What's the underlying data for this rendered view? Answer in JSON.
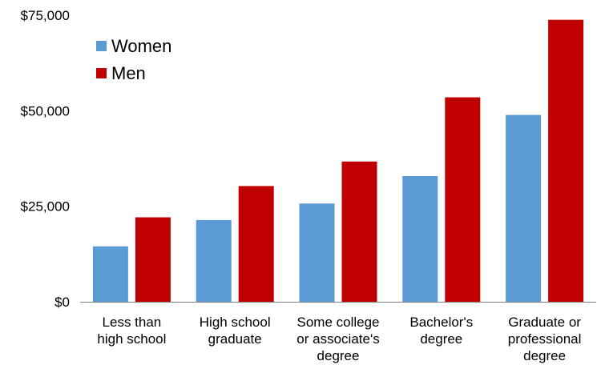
{
  "chart_data": {
    "type": "bar",
    "title": "",
    "xlabel": "",
    "ylabel": "",
    "categories": [
      [
        "Less than",
        "high school"
      ],
      [
        "High school",
        "graduate"
      ],
      [
        "Some college",
        "or associate's",
        "degree"
      ],
      [
        "Bachelor's",
        "degree"
      ],
      [
        "Graduate or",
        "professional",
        "degree"
      ]
    ],
    "series": [
      {
        "name": "Women",
        "color": "#5b9bd5",
        "values": [
          14500,
          21400,
          25700,
          32900,
          48900
        ]
      },
      {
        "name": "Men",
        "color": "#c00000",
        "values": [
          22100,
          30300,
          36700,
          53500,
          73800
        ]
      }
    ],
    "ylim": [
      0,
      75000
    ],
    "yticks": [
      0,
      25000,
      50000,
      75000
    ],
    "ytick_labels": [
      "$0",
      "$25,000",
      "$50,000",
      "$75,000"
    ],
    "grid": false,
    "legend_position": "top-left",
    "axis_color": "#808080"
  }
}
